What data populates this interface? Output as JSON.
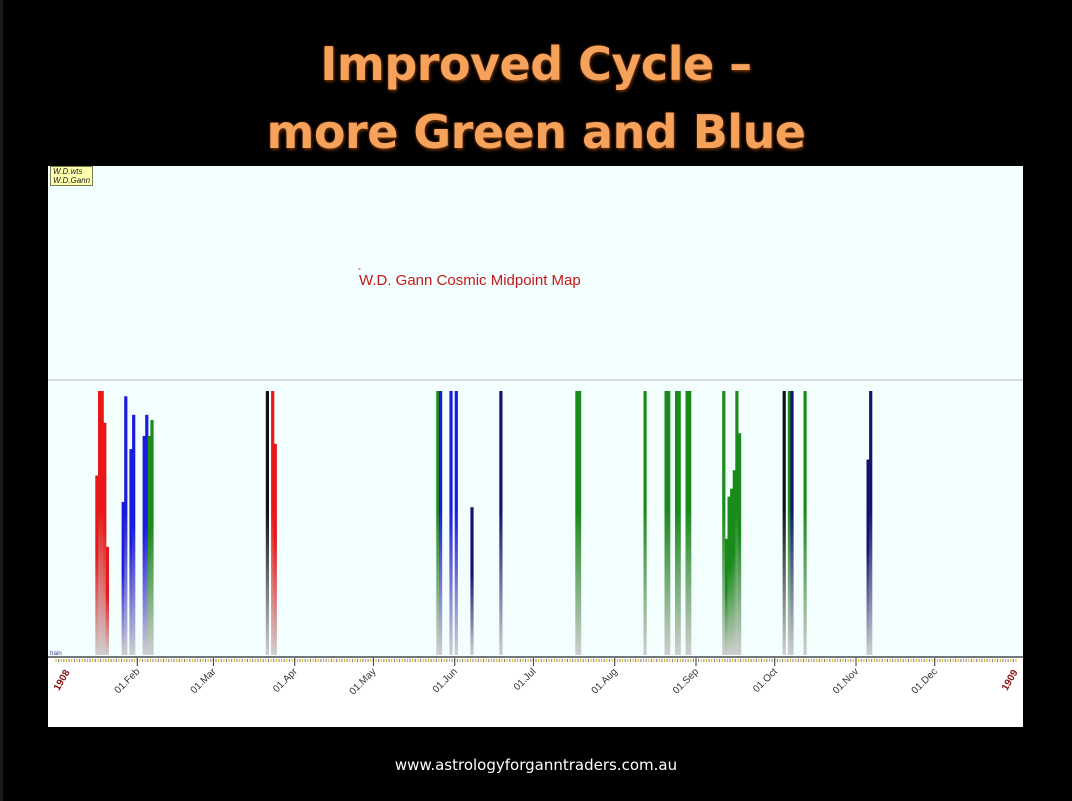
{
  "title_line1": "Improved Cycle –",
  "title_line2": "more Green and Blue",
  "footer": "www.astrologyforganntraders.com.au",
  "legend": [
    "W.D.wts",
    "W.D.Gann"
  ],
  "chart_data": {
    "type": "bar",
    "title": "W.D. Gann Cosmic Midpoint Map",
    "bottom_label": "train",
    "xlabel": "",
    "ylabel": "",
    "x_start_label": "1908",
    "x_end_label": "1909",
    "x_range": [
      "1908-01-01",
      "1909-01-01"
    ],
    "ylim": [
      0,
      100
    ],
    "month_ticks": [
      {
        "date": "1908-02-01",
        "label": "01.Feb"
      },
      {
        "date": "1908-03-01",
        "label": "01.Mar"
      },
      {
        "date": "1908-04-01",
        "label": "01.Apr"
      },
      {
        "date": "1908-05-01",
        "label": "01.May"
      },
      {
        "date": "1908-06-01",
        "label": "01.Jun"
      },
      {
        "date": "1908-07-01",
        "label": "01.Jul"
      },
      {
        "date": "1908-08-01",
        "label": "01.Aug"
      },
      {
        "date": "1908-09-01",
        "label": "01.Sep"
      },
      {
        "date": "1908-10-01",
        "label": "01.Oct"
      },
      {
        "date": "1908-11-01",
        "label": "01.Nov"
      },
      {
        "date": "1908-12-01",
        "label": "01.Dec"
      }
    ],
    "colors": {
      "red": "#e81818",
      "blue": "#1a1ae0",
      "green": "#1a8a1a",
      "black": "#111111",
      "navy": "#121270"
    },
    "bars": [
      {
        "date": "1908-01-16",
        "value": 68,
        "color": "red"
      },
      {
        "date": "1908-01-17",
        "value": 100,
        "color": "red"
      },
      {
        "date": "1908-01-18",
        "value": 100,
        "color": "red"
      },
      {
        "date": "1908-01-19",
        "value": 88,
        "color": "red"
      },
      {
        "date": "1908-01-20",
        "value": 41,
        "color": "red"
      },
      {
        "date": "1908-01-26",
        "value": 58,
        "color": "blue"
      },
      {
        "date": "1908-01-27",
        "value": 98,
        "color": "blue"
      },
      {
        "date": "1908-01-29",
        "value": 78,
        "color": "blue"
      },
      {
        "date": "1908-01-30",
        "value": 91,
        "color": "blue"
      },
      {
        "date": "1908-02-03",
        "value": 83,
        "color": "blue"
      },
      {
        "date": "1908-02-04",
        "value": 91,
        "color": "blue"
      },
      {
        "date": "1908-02-05",
        "value": 83,
        "color": "green"
      },
      {
        "date": "1908-02-06",
        "value": 89,
        "color": "green"
      },
      {
        "date": "1908-03-21",
        "value": 100,
        "color": "black"
      },
      {
        "date": "1908-03-23",
        "value": 100,
        "color": "red"
      },
      {
        "date": "1908-03-24",
        "value": 80,
        "color": "red"
      },
      {
        "date": "1908-05-25",
        "value": 100,
        "color": "green"
      },
      {
        "date": "1908-05-26",
        "value": 100,
        "color": "blue"
      },
      {
        "date": "1908-05-30",
        "value": 100,
        "color": "blue"
      },
      {
        "date": "1908-06-01",
        "value": 100,
        "color": "blue"
      },
      {
        "date": "1908-06-07",
        "value": 56,
        "color": "navy"
      },
      {
        "date": "1908-06-18",
        "value": 100,
        "color": "navy"
      },
      {
        "date": "1908-07-17",
        "value": 100,
        "color": "green"
      },
      {
        "date": "1908-07-18",
        "value": 100,
        "color": "green"
      },
      {
        "date": "1908-08-12",
        "value": 100,
        "color": "green"
      },
      {
        "date": "1908-08-20",
        "value": 100,
        "color": "green"
      },
      {
        "date": "1908-08-21",
        "value": 100,
        "color": "green"
      },
      {
        "date": "1908-08-24",
        "value": 100,
        "color": "green"
      },
      {
        "date": "1908-08-25",
        "value": 100,
        "color": "green"
      },
      {
        "date": "1908-08-28",
        "value": 100,
        "color": "green"
      },
      {
        "date": "1908-08-29",
        "value": 100,
        "color": "green"
      },
      {
        "date": "1908-09-11",
        "value": 100,
        "color": "green"
      },
      {
        "date": "1908-09-12",
        "value": 44,
        "color": "green"
      },
      {
        "date": "1908-09-13",
        "value": 60,
        "color": "green"
      },
      {
        "date": "1908-09-14",
        "value": 63,
        "color": "green"
      },
      {
        "date": "1908-09-15",
        "value": 70,
        "color": "green"
      },
      {
        "date": "1908-09-16",
        "value": 100,
        "color": "green"
      },
      {
        "date": "1908-09-17",
        "value": 84,
        "color": "green"
      },
      {
        "date": "1908-10-04",
        "value": 100,
        "color": "black"
      },
      {
        "date": "1908-10-06",
        "value": 100,
        "color": "green"
      },
      {
        "date": "1908-10-07",
        "value": 100,
        "color": "navy"
      },
      {
        "date": "1908-10-12",
        "value": 100,
        "color": "green"
      },
      {
        "date": "1908-11-05",
        "value": 74,
        "color": "navy"
      },
      {
        "date": "1908-11-06",
        "value": 100,
        "color": "navy"
      }
    ]
  }
}
